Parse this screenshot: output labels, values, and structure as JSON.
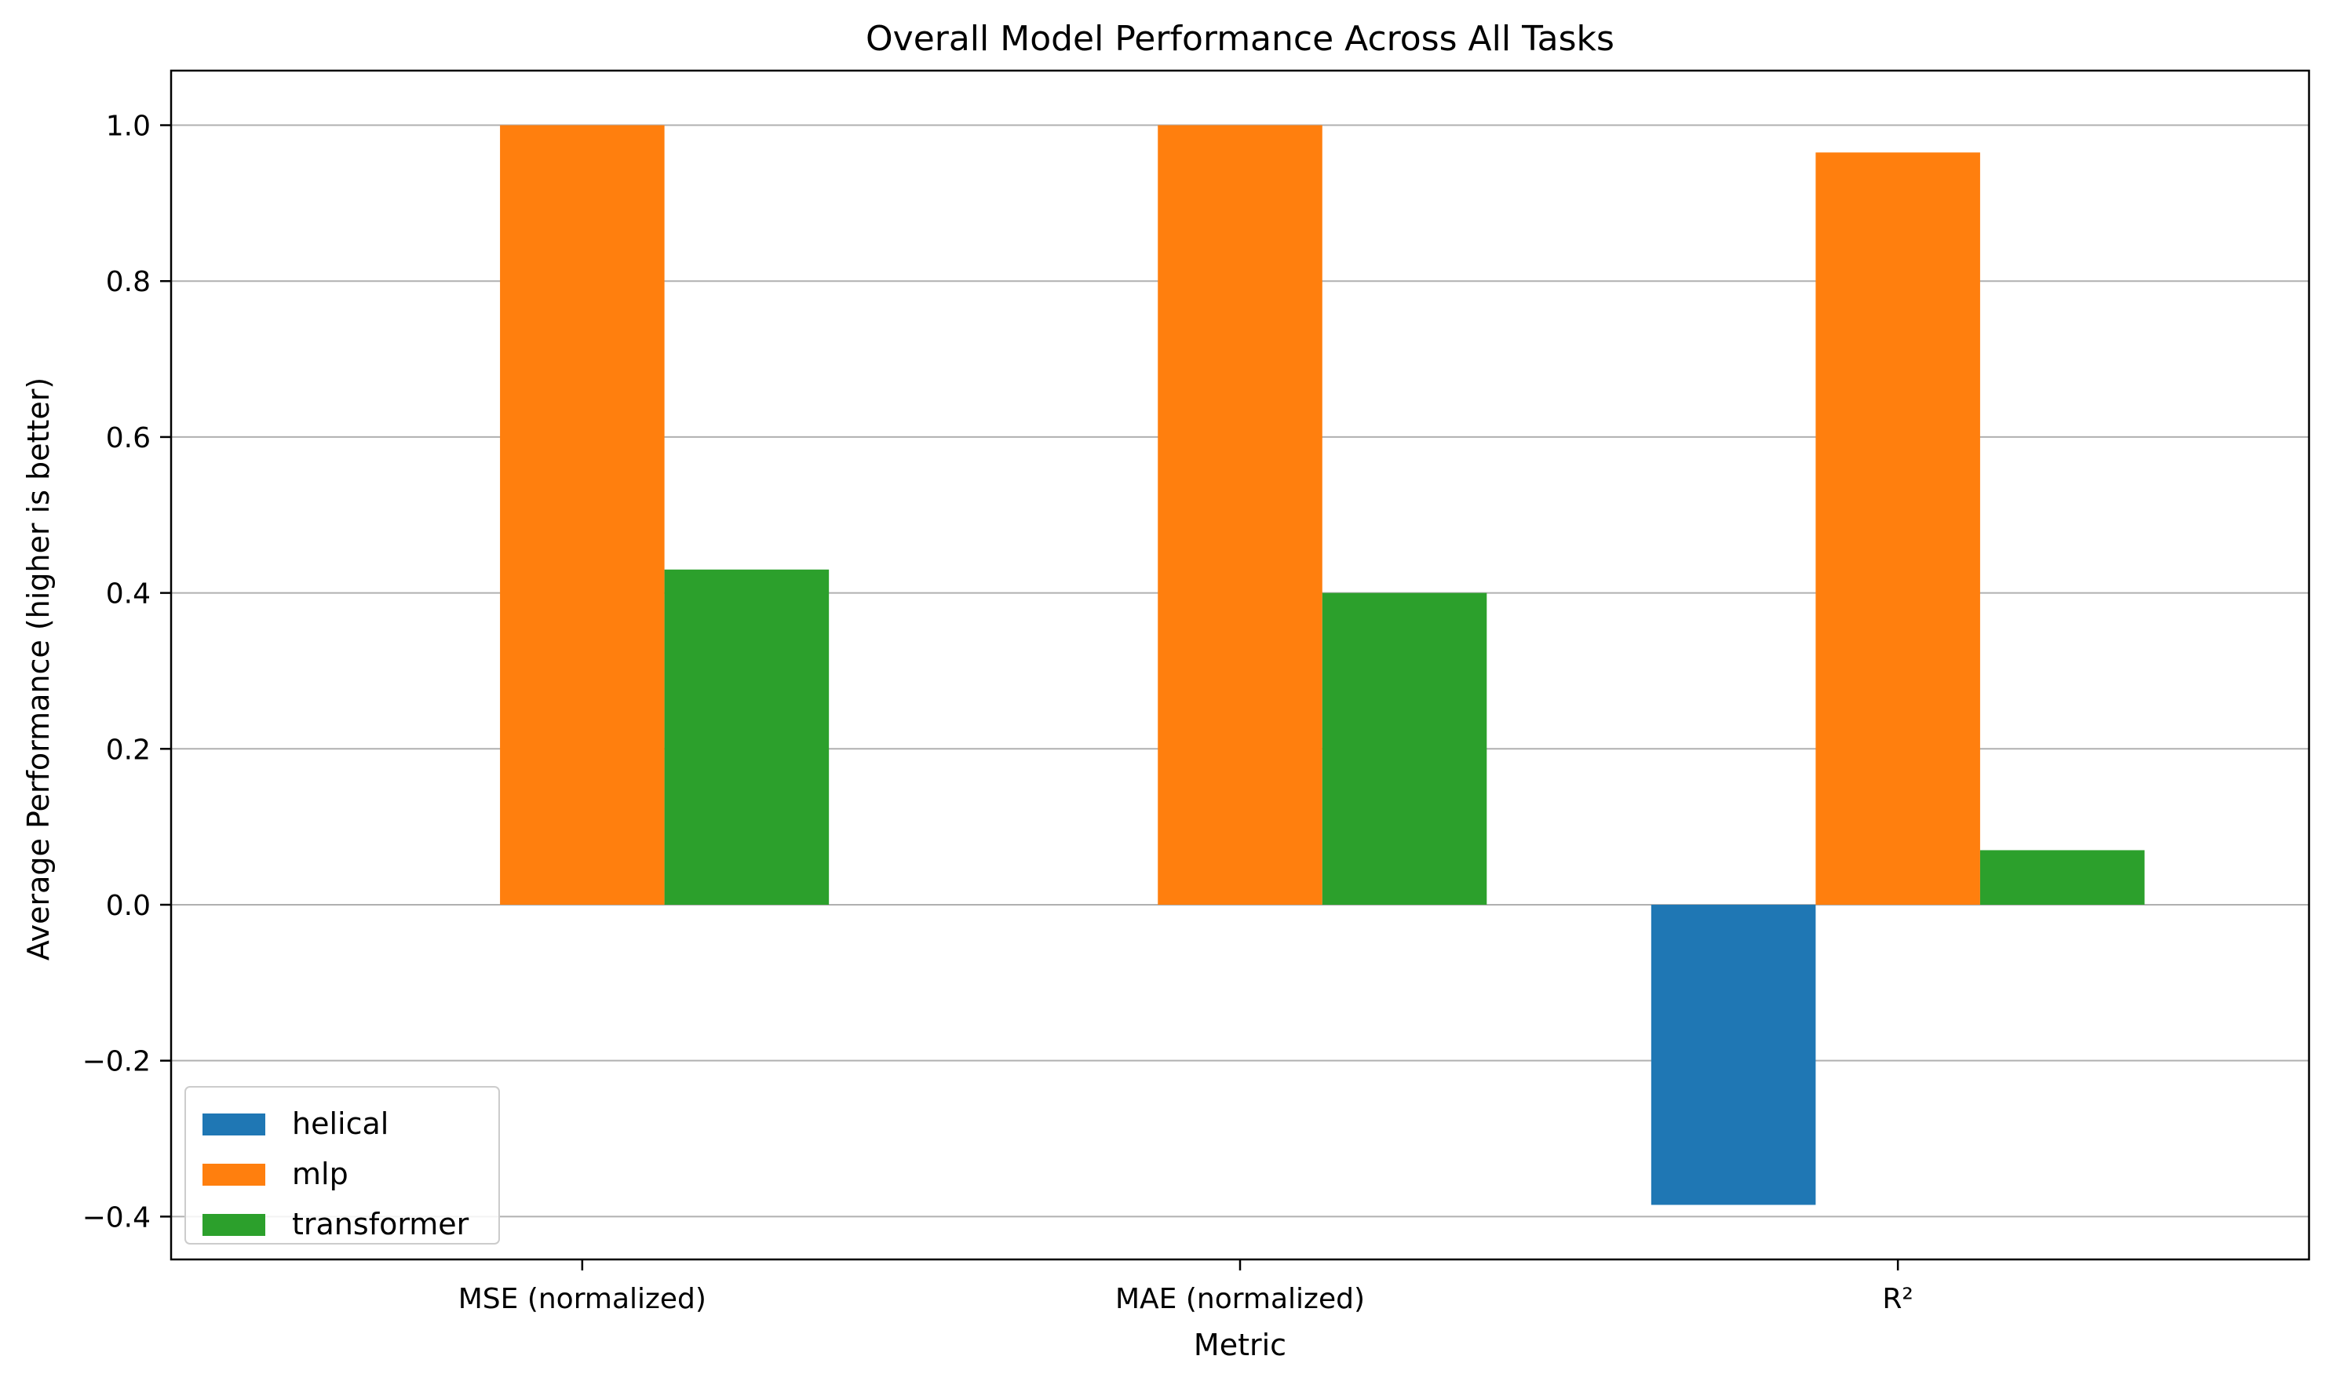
{
  "chart_data": {
    "type": "bar",
    "title": "Overall Model Performance Across All Tasks",
    "xlabel": "Metric",
    "ylabel": "Average Performance (higher is better)",
    "categories": [
      "MSE (normalized)",
      "MAE (normalized)",
      "R²"
    ],
    "series": [
      {
        "name": "helical",
        "color": "#1f77b4",
        "values": [
          0.0,
          0.0,
          -0.385
        ]
      },
      {
        "name": "mlp",
        "color": "#ff7f0e",
        "values": [
          1.0,
          1.0,
          0.965
        ]
      },
      {
        "name": "transformer",
        "color": "#2ca02c",
        "values": [
          0.43,
          0.4,
          0.07
        ]
      }
    ],
    "ylim": [
      -0.455,
      1.07
    ],
    "yticks": [
      -0.4,
      -0.2,
      0.0,
      0.2,
      0.4,
      0.6,
      0.8,
      1.0
    ],
    "ytick_labels": [
      "−0.4",
      "−0.2",
      "0.0",
      "0.2",
      "0.4",
      "0.6",
      "0.8",
      "1.0"
    ],
    "grid": "y",
    "legend_position": "lower-left"
  }
}
